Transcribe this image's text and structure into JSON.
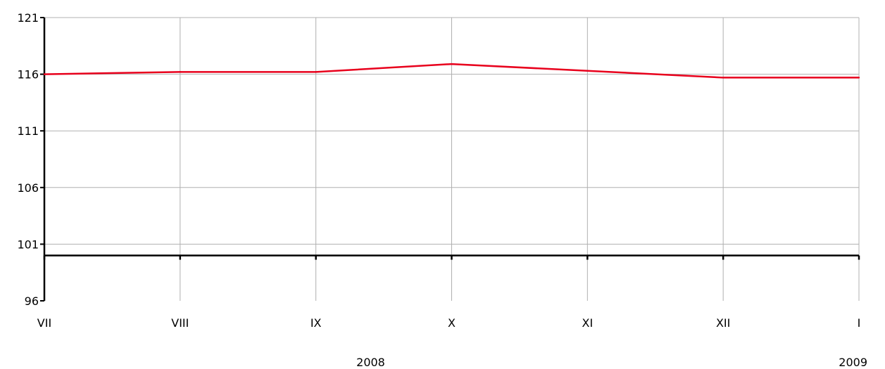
{
  "chart_data": {
    "type": "line",
    "categories": [
      "VII",
      "VIII",
      "IX",
      "X",
      "XI",
      "XII",
      "I"
    ],
    "series": [
      {
        "values": [
          116.0,
          116.2,
          116.2,
          116.9,
          116.3,
          115.7,
          115.7
        ],
        "color": "#e8001c"
      }
    ],
    "ylim": [
      96,
      121
    ],
    "yticks": [
      96,
      101,
      106,
      111,
      116,
      121
    ],
    "reference_line": 100,
    "year_labels": [
      {
        "text": "2008",
        "category": "X"
      },
      {
        "text": "2009",
        "category": "I"
      }
    ],
    "grid": true,
    "legend": "none"
  }
}
